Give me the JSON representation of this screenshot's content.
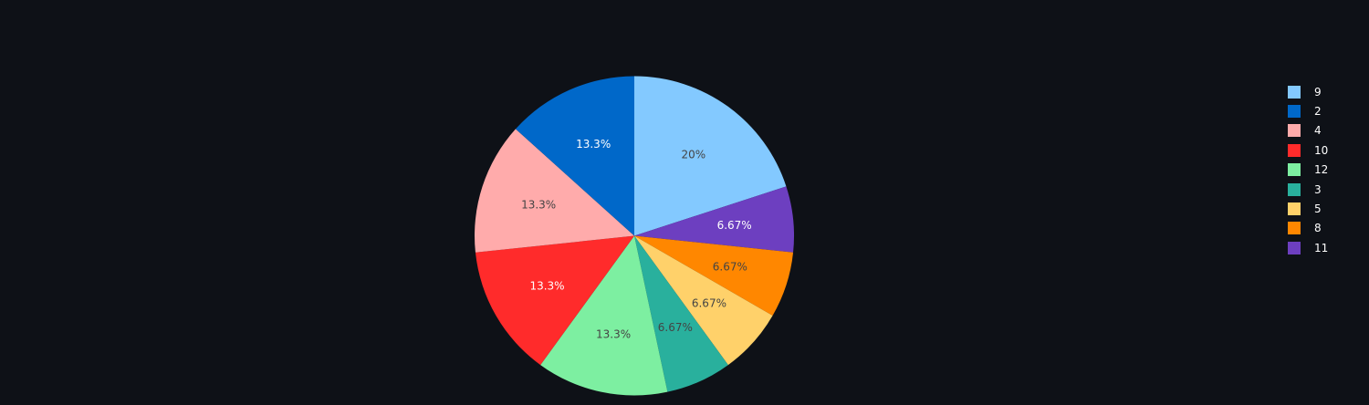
{
  "chart_data": {
    "type": "pie",
    "title": "",
    "slices": [
      {
        "label": "9",
        "value": 3,
        "percent_label": "20%",
        "color": "#83c9ff",
        "text_color": "#444444"
      },
      {
        "label": "11",
        "value": 1,
        "percent_label": "6.67%",
        "color": "#6d3fc0",
        "text_color": "#ffffff"
      },
      {
        "label": "8",
        "value": 1,
        "percent_label": "6.67%",
        "color": "#ff8700",
        "text_color": "#444444"
      },
      {
        "label": "5",
        "value": 1,
        "percent_label": "6.67%",
        "color": "#ffd16a",
        "text_color": "#444444"
      },
      {
        "label": "3",
        "value": 1,
        "percent_label": "6.67%",
        "color": "#29b09d",
        "text_color": "#444444"
      },
      {
        "label": "12",
        "value": 2,
        "percent_label": "13.3%",
        "color": "#7defa1",
        "text_color": "#444444"
      },
      {
        "label": "10",
        "value": 2,
        "percent_label": "13.3%",
        "color": "#ff2b2b",
        "text_color": "#ffffff"
      },
      {
        "label": "4",
        "value": 2,
        "percent_label": "13.3%",
        "color": "#ffabab",
        "text_color": "#444444"
      },
      {
        "label": "2",
        "value": 2,
        "percent_label": "13.3%",
        "color": "#0068c9",
        "text_color": "#ffffff"
      }
    ],
    "legend": {
      "position": "right",
      "items": [
        {
          "label": "9",
          "color": "#83c9ff"
        },
        {
          "label": "2",
          "color": "#0068c9"
        },
        {
          "label": "4",
          "color": "#ffabab"
        },
        {
          "label": "10",
          "color": "#ff2b2b"
        },
        {
          "label": "12",
          "color": "#7defa1"
        },
        {
          "label": "3",
          "color": "#29b09d"
        },
        {
          "label": "5",
          "color": "#ffd16a"
        },
        {
          "label": "8",
          "color": "#ff8700"
        },
        {
          "label": "11",
          "color": "#6d3fc0"
        }
      ]
    },
    "background_color": "#0e1117"
  }
}
